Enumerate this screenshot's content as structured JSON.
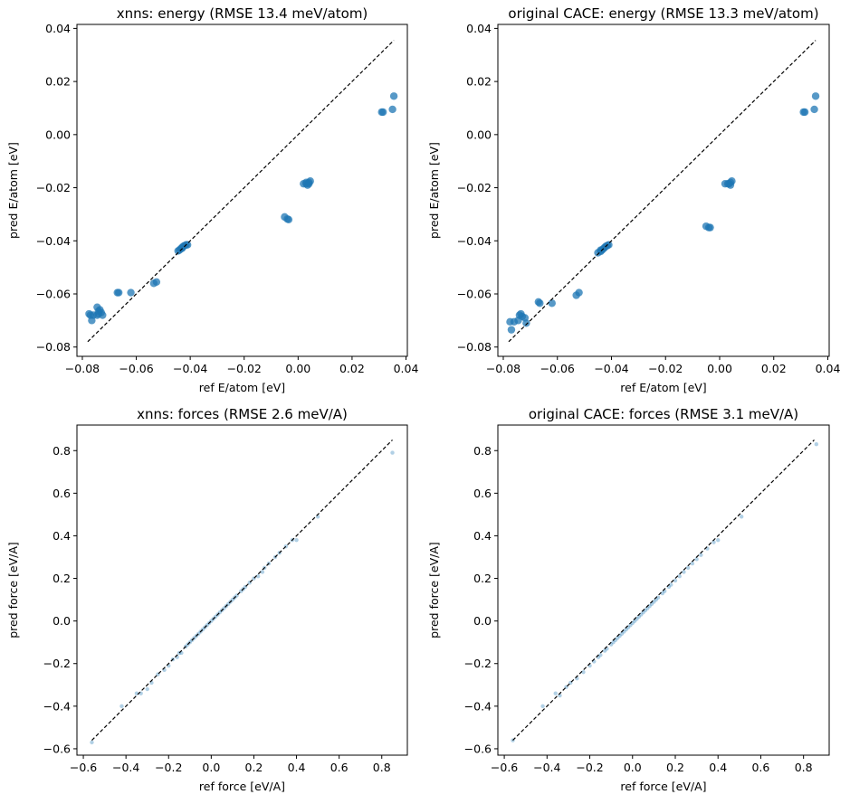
{
  "chart_data": [
    {
      "type": "scatter",
      "title": "xnns: energy (RMSE 13.4 meV/atom)",
      "xlabel": "ref E/atom [eV]",
      "ylabel": "pred E/atom [eV]",
      "xlim": [
        -0.082,
        0.0405
      ],
      "ylim": [
        -0.0835,
        0.0415
      ],
      "xticks": [
        -0.08,
        -0.06,
        -0.04,
        -0.02,
        0.0,
        0.02,
        0.04
      ],
      "xtick_labels": [
        "−0.08",
        "−0.06",
        "−0.04",
        "−0.02",
        "0.00",
        "0.02",
        "0.04"
      ],
      "yticks": [
        -0.08,
        -0.06,
        -0.04,
        -0.02,
        0.0,
        0.02,
        0.04
      ],
      "ytick_labels": [
        "−0.08",
        "−0.06",
        "−0.04",
        "−0.02",
        "0.00",
        "0.02",
        "0.04"
      ],
      "reference_line": {
        "from": [
          -0.078,
          -0.078
        ],
        "to": [
          0.0355,
          0.0355
        ],
        "style": "dashed",
        "color": "#000000"
      },
      "marker": {
        "color": "#1f77b4",
        "opacity": 0.75,
        "radius": 4.2
      },
      "series": [
        {
          "x": [
            -0.0775,
            -0.0765,
            -0.077,
            -0.0745,
            -0.074,
            -0.0735,
            -0.073,
            -0.0725,
            -0.074,
            -0.076,
            -0.0745,
            -0.067,
            -0.0665,
            -0.062,
            -0.0535,
            -0.0525,
            -0.044,
            -0.0435,
            -0.043,
            -0.0425,
            -0.042,
            -0.0415,
            -0.041,
            -0.043,
            -0.0445,
            -0.005,
            -0.004,
            -0.0035,
            0.002,
            0.003,
            0.0035,
            0.004,
            0.0045,
            0.004,
            0.003,
            0.031,
            0.0315,
            0.035,
            0.0355
          ],
          "y": [
            -0.0675,
            -0.07,
            -0.068,
            -0.065,
            -0.0665,
            -0.066,
            -0.067,
            -0.068,
            -0.0675,
            -0.068,
            -0.068,
            -0.0595,
            -0.0595,
            -0.0595,
            -0.056,
            -0.0555,
            -0.0435,
            -0.043,
            -0.0425,
            -0.042,
            -0.0418,
            -0.0415,
            -0.0415,
            -0.0428,
            -0.0438,
            -0.031,
            -0.0318,
            -0.032,
            -0.0185,
            -0.0185,
            -0.019,
            -0.018,
            -0.0175,
            -0.0185,
            -0.018,
            0.0085,
            0.0085,
            0.0095,
            0.0145
          ]
        }
      ],
      "grid": false
    },
    {
      "type": "scatter",
      "title": "original CACE: energy (RMSE 13.3 meV/atom)",
      "xlabel": "ref E/atom [eV]",
      "ylabel": "pred E/atom [eV]",
      "xlim": [
        -0.082,
        0.0405
      ],
      "ylim": [
        -0.0835,
        0.0415
      ],
      "xticks": [
        -0.08,
        -0.06,
        -0.04,
        -0.02,
        0.0,
        0.02,
        0.04
      ],
      "xtick_labels": [
        "−0.08",
        "−0.06",
        "−0.04",
        "−0.02",
        "0.00",
        "0.02",
        "0.04"
      ],
      "yticks": [
        -0.08,
        -0.06,
        -0.04,
        -0.02,
        0.0,
        0.02,
        0.04
      ],
      "ytick_labels": [
        "−0.08",
        "−0.06",
        "−0.04",
        "−0.02",
        "0.00",
        "0.02",
        "0.04"
      ],
      "reference_line": {
        "from": [
          -0.078,
          -0.078
        ],
        "to": [
          0.0355,
          0.0355
        ],
        "style": "dashed",
        "color": "#000000"
      },
      "marker": {
        "color": "#1f77b4",
        "opacity": 0.75,
        "radius": 4.2
      },
      "series": [
        {
          "x": [
            -0.0775,
            -0.077,
            -0.076,
            -0.074,
            -0.0735,
            -0.073,
            -0.072,
            -0.0715,
            -0.0745,
            -0.067,
            -0.0665,
            -0.062,
            -0.053,
            -0.052,
            -0.044,
            -0.0435,
            -0.043,
            -0.0425,
            -0.042,
            -0.0415,
            -0.041,
            -0.044,
            -0.045,
            -0.005,
            -0.004,
            -0.0035,
            0.002,
            0.003,
            0.004,
            0.0045,
            0.004,
            0.0035,
            0.031,
            0.0315,
            0.035,
            0.0355
          ],
          "y": [
            -0.0705,
            -0.0735,
            -0.0705,
            -0.068,
            -0.0675,
            -0.0685,
            -0.069,
            -0.071,
            -0.07,
            -0.063,
            -0.0635,
            -0.0635,
            -0.0605,
            -0.0595,
            -0.044,
            -0.0435,
            -0.043,
            -0.0425,
            -0.042,
            -0.0418,
            -0.0415,
            -0.0435,
            -0.0445,
            -0.0345,
            -0.035,
            -0.035,
            -0.0185,
            -0.0185,
            -0.018,
            -0.0175,
            -0.019,
            -0.0185,
            0.0085,
            0.0085,
            0.0095,
            0.0145
          ]
        }
      ],
      "grid": false
    },
    {
      "type": "scatter",
      "title": "xnns: forces (RMSE 2.6 meV/A)",
      "xlabel": "ref force [eV/A]",
      "ylabel": "pred force [eV/A]",
      "xlim": [
        -0.63,
        0.92
      ],
      "ylim": [
        -0.63,
        0.92
      ],
      "xticks": [
        -0.6,
        -0.4,
        -0.2,
        0.0,
        0.2,
        0.4,
        0.6,
        0.8
      ],
      "xtick_labels": [
        "−0.6",
        "−0.4",
        "−0.2",
        "0.0",
        "0.2",
        "0.4",
        "0.6",
        "0.8"
      ],
      "yticks": [
        -0.6,
        -0.4,
        -0.2,
        0.0,
        0.2,
        0.4,
        0.6,
        0.8
      ],
      "ytick_labels": [
        "−0.6",
        "−0.4",
        "−0.2",
        "0.0",
        "0.2",
        "0.4",
        "0.6",
        "0.8"
      ],
      "reference_line": {
        "from": [
          -0.56,
          -0.56
        ],
        "to": [
          0.85,
          0.85
        ],
        "style": "dashed",
        "color": "#000000"
      },
      "marker": {
        "color": "#1f77b4",
        "opacity": 0.35,
        "radius": 2.2
      },
      "series": [
        {
          "x": [
            -0.56,
            -0.42,
            -0.35,
            -0.33,
            -0.3,
            -0.28,
            -0.25,
            -0.22,
            -0.2,
            -0.18,
            -0.16,
            -0.15,
            -0.14,
            -0.12,
            -0.11,
            -0.1,
            -0.09,
            -0.08,
            -0.07,
            -0.06,
            -0.05,
            -0.04,
            -0.03,
            -0.02,
            -0.01,
            0.0,
            0.01,
            0.02,
            0.03,
            0.04,
            0.05,
            0.06,
            0.07,
            0.08,
            0.09,
            0.1,
            0.11,
            0.12,
            0.14,
            0.15,
            0.16,
            0.18,
            0.2,
            0.22,
            0.24,
            0.25,
            0.27,
            0.3,
            0.32,
            0.35,
            0.38,
            0.4,
            0.5,
            0.85
          ],
          "y": [
            -0.57,
            -0.4,
            -0.34,
            -0.34,
            -0.32,
            -0.29,
            -0.25,
            -0.23,
            -0.21,
            -0.18,
            -0.17,
            -0.15,
            -0.15,
            -0.12,
            -0.11,
            -0.1,
            -0.09,
            -0.08,
            -0.07,
            -0.06,
            -0.05,
            -0.04,
            -0.03,
            -0.02,
            -0.01,
            0.0,
            0.01,
            0.02,
            0.03,
            0.04,
            0.05,
            0.06,
            0.07,
            0.08,
            0.09,
            0.1,
            0.11,
            0.12,
            0.14,
            0.15,
            0.16,
            0.18,
            0.2,
            0.21,
            0.23,
            0.25,
            0.27,
            0.3,
            0.32,
            0.35,
            0.38,
            0.38,
            0.49,
            0.79
          ]
        }
      ],
      "grid": false
    },
    {
      "type": "scatter",
      "title": "original CACE: forces (RMSE 3.1 meV/A)",
      "xlabel": "ref force [eV/A]",
      "ylabel": "pred force [eV/A]",
      "xlim": [
        -0.63,
        0.92
      ],
      "ylim": [
        -0.63,
        0.92
      ],
      "xticks": [
        -0.6,
        -0.4,
        -0.2,
        0.0,
        0.2,
        0.4,
        0.6,
        0.8
      ],
      "xtick_labels": [
        "−0.6",
        "−0.4",
        "−0.2",
        "0.0",
        "0.2",
        "0.4",
        "0.6",
        "0.8"
      ],
      "yticks": [
        -0.6,
        -0.4,
        -0.2,
        0.0,
        0.2,
        0.4,
        0.6,
        0.8
      ],
      "ytick_labels": [
        "−0.6",
        "−0.4",
        "−0.2",
        "0.0",
        "0.2",
        "0.4",
        "0.6",
        "0.8"
      ],
      "reference_line": {
        "from": [
          -0.56,
          -0.56
        ],
        "to": [
          0.85,
          0.85
        ],
        "style": "dashed",
        "color": "#000000"
      },
      "marker": {
        "color": "#1f77b4",
        "opacity": 0.35,
        "radius": 2.2
      },
      "series": [
        {
          "x": [
            -0.56,
            -0.42,
            -0.36,
            -0.34,
            -0.31,
            -0.29,
            -0.26,
            -0.23,
            -0.2,
            -0.18,
            -0.16,
            -0.15,
            -0.13,
            -0.12,
            -0.1,
            -0.09,
            -0.08,
            -0.07,
            -0.06,
            -0.05,
            -0.04,
            -0.03,
            -0.02,
            -0.01,
            0.0,
            0.01,
            0.02,
            0.03,
            0.04,
            0.05,
            0.06,
            0.07,
            0.08,
            0.09,
            0.1,
            0.11,
            0.12,
            0.14,
            0.15,
            0.17,
            0.18,
            0.2,
            0.22,
            0.24,
            0.26,
            0.28,
            0.3,
            0.32,
            0.35,
            0.38,
            0.4,
            0.51,
            0.86
          ],
          "y": [
            -0.56,
            -0.4,
            -0.34,
            -0.35,
            -0.31,
            -0.29,
            -0.27,
            -0.24,
            -0.21,
            -0.19,
            -0.17,
            -0.16,
            -0.14,
            -0.13,
            -0.11,
            -0.1,
            -0.09,
            -0.08,
            -0.07,
            -0.06,
            -0.05,
            -0.04,
            -0.03,
            -0.02,
            -0.01,
            0.0,
            0.01,
            0.02,
            0.03,
            0.04,
            0.05,
            0.06,
            0.07,
            0.08,
            0.09,
            0.1,
            0.11,
            0.13,
            0.14,
            0.16,
            0.17,
            0.19,
            0.21,
            0.23,
            0.25,
            0.27,
            0.29,
            0.31,
            0.34,
            0.37,
            0.38,
            0.49,
            0.83
          ]
        }
      ],
      "grid": false
    }
  ]
}
